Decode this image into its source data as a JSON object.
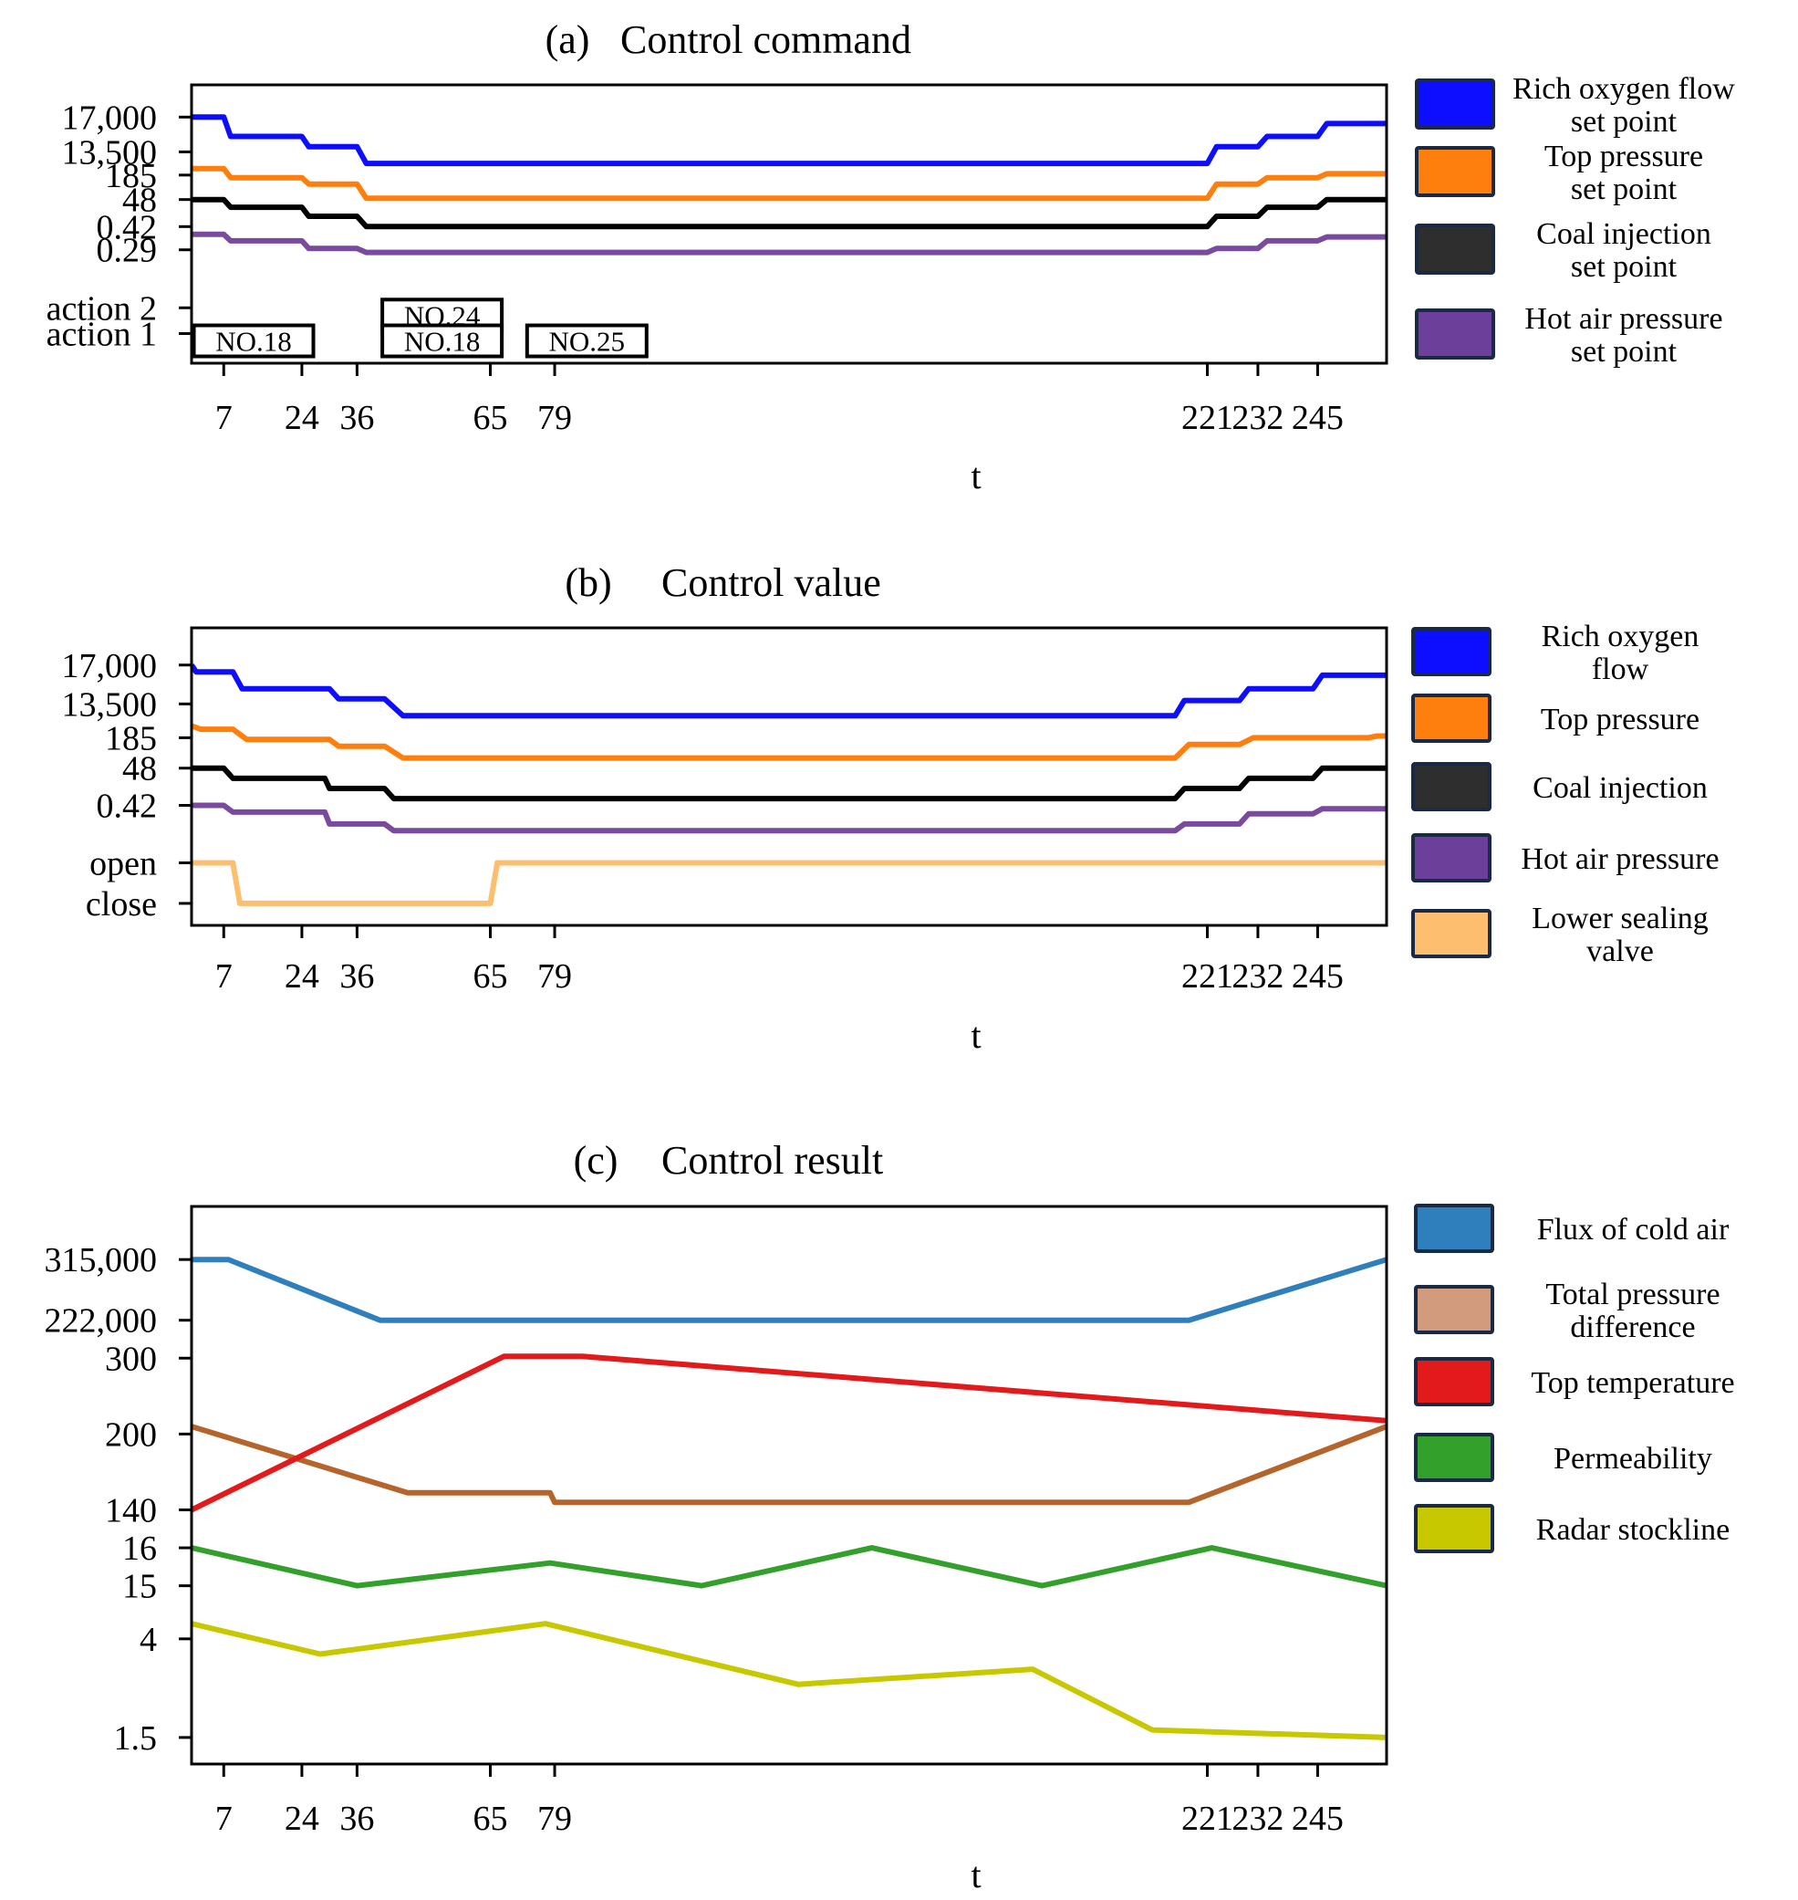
{
  "chart_data": [
    {
      "id": "a",
      "type": "line",
      "panel_label": "(a)",
      "title": "Control command",
      "xlabel": "t",
      "xlim": [
        0,
        260
      ],
      "x_ticks": [
        7,
        24,
        36,
        65,
        79,
        221,
        232,
        245
      ],
      "x_tick_labels": [
        "7",
        "24",
        "36",
        "65",
        "79",
        "221",
        "232",
        "245"
      ],
      "y_tick_labels": [
        {
          "label": "17,000",
          "level": 9.55
        },
        {
          "label": "13,500",
          "level": 8.2
        },
        {
          "label": "185",
          "level": 7.3
        },
        {
          "label": "48",
          "level": 6.35
        },
        {
          "label": "0.42",
          "level": 5.3
        },
        {
          "label": "0.29",
          "level": 4.4
        },
        {
          "label": "action 2",
          "level": 2.15
        },
        {
          "label": "action 1",
          "level": 1.15
        }
      ],
      "ylim": [
        0,
        10.8
      ],
      "series": [
        {
          "name": "Rich oxygen flow set point",
          "color": "#0d0dff",
          "x": [
            0,
            7,
            8.5,
            24,
            25.5,
            36,
            38,
            221,
            223,
            232,
            234,
            245,
            247,
            260
          ],
          "y": [
            9.55,
            9.55,
            8.8,
            8.8,
            8.4,
            8.4,
            7.75,
            7.75,
            8.4,
            8.4,
            8.8,
            8.8,
            9.3,
            9.3
          ]
        },
        {
          "name": "Top pressure set point",
          "color": "#ff7f0e",
          "x": [
            0,
            7,
            8.5,
            24,
            25.5,
            36,
            38,
            221,
            223,
            232,
            234,
            245,
            247,
            260
          ],
          "y": [
            7.55,
            7.55,
            7.2,
            7.2,
            6.95,
            6.95,
            6.4,
            6.4,
            6.95,
            6.95,
            7.2,
            7.2,
            7.35,
            7.35
          ]
        },
        {
          "name": "Coal injection set point",
          "color": "#000000",
          "x": [
            0,
            7,
            8.5,
            24,
            25.5,
            36,
            38,
            221,
            223,
            232,
            234,
            245,
            247,
            260
          ],
          "y": [
            6.35,
            6.35,
            6.05,
            6.05,
            5.7,
            5.7,
            5.3,
            5.3,
            5.7,
            5.7,
            6.05,
            6.05,
            6.35,
            6.35
          ]
        },
        {
          "name": "Hot air pressure set point",
          "color": "#7a4a9e",
          "x": [
            0,
            7,
            8.5,
            24,
            25.5,
            36,
            38,
            221,
            223,
            232,
            234,
            245,
            247,
            260
          ],
          "y": [
            5.0,
            5.0,
            4.75,
            4.75,
            4.45,
            4.45,
            4.3,
            4.3,
            4.45,
            4.45,
            4.75,
            4.75,
            4.9,
            4.9
          ]
        }
      ],
      "annotations": [
        {
          "text": "NO.18",
          "x0": 0.5,
          "x1": 26.5,
          "row": "action 1"
        },
        {
          "text": "NO.24",
          "x0": 41.5,
          "x1": 67.5,
          "row": "action 2"
        },
        {
          "text": "NO.18",
          "x0": 41.5,
          "x1": 67.5,
          "row": "action 1"
        },
        {
          "text": "NO.25",
          "x0": 73,
          "x1": 99,
          "row": "action 1"
        }
      ],
      "legend": {
        "placement": "right",
        "entries": [
          {
            "lines": [
              "Rich oxygen flow",
              "set point"
            ],
            "color": "#0d0dff"
          },
          {
            "lines": [
              "Top pressure",
              "set point"
            ],
            "color": "#ff7f0e"
          },
          {
            "lines": [
              "Coal injection",
              "set point"
            ],
            "color": "#2e2e2e"
          },
          {
            "lines": [
              "Hot air pressure",
              "set point"
            ],
            "color": "#6b3f9a"
          }
        ]
      }
    },
    {
      "id": "b",
      "type": "line",
      "panel_label": "(b)",
      "title": "Control value",
      "xlabel": "t",
      "xlim": [
        0,
        260
      ],
      "x_ticks": [
        7,
        24,
        36,
        65,
        79,
        221,
        232,
        245
      ],
      "x_tick_labels": [
        "7",
        "24",
        "36",
        "65",
        "79",
        "221",
        "232",
        "245"
      ],
      "y_tick_labels": [
        {
          "label": "17,000",
          "level": 9.2
        },
        {
          "label": "13,500",
          "level": 8.05
        },
        {
          "label": "185",
          "level": 7.05
        },
        {
          "label": "48",
          "level": 6.15
        },
        {
          "label": "0.42",
          "level": 5.05
        },
        {
          "label": "open",
          "level": 3.35
        },
        {
          "label": "close",
          "level": 2.15
        }
      ],
      "ylim": [
        1.5,
        10.3
      ],
      "series": [
        {
          "name": "Rich oxygen flow",
          "color": "#0d0dff",
          "x": [
            0,
            1,
            9,
            11,
            30,
            32,
            42,
            46,
            214,
            216,
            228,
            230,
            244,
            246,
            256,
            258,
            260
          ],
          "y": [
            9.2,
            9.0,
            9.0,
            8.5,
            8.5,
            8.2,
            8.2,
            7.7,
            7.7,
            8.15,
            8.15,
            8.5,
            8.5,
            8.9,
            8.9,
            8.9,
            8.9
          ]
        },
        {
          "name": "Top pressure",
          "color": "#ff7f0e",
          "x": [
            0,
            2,
            9,
            12,
            30,
            32,
            42,
            46,
            214,
            217,
            228,
            231,
            244,
            246,
            256,
            258,
            260
          ],
          "y": [
            7.4,
            7.3,
            7.3,
            7.0,
            7.0,
            6.8,
            6.8,
            6.45,
            6.45,
            6.85,
            6.85,
            7.05,
            7.05,
            7.05,
            7.05,
            7.1,
            7.1
          ]
        },
        {
          "name": "Coal injection",
          "color": "#000000",
          "x": [
            0,
            7,
            9,
            29,
            30,
            42,
            44,
            214,
            216,
            228,
            230,
            244,
            246,
            260
          ],
          "y": [
            6.15,
            6.15,
            5.85,
            5.85,
            5.55,
            5.55,
            5.25,
            5.25,
            5.55,
            5.55,
            5.85,
            5.85,
            6.15,
            6.15
          ]
        },
        {
          "name": "Hot air pressure",
          "color": "#7a4a9e",
          "x": [
            0,
            7,
            9,
            29,
            30,
            42,
            44,
            214,
            216,
            228,
            230,
            244,
            246,
            260
          ],
          "y": [
            5.05,
            5.05,
            4.85,
            4.85,
            4.5,
            4.5,
            4.3,
            4.3,
            4.5,
            4.5,
            4.8,
            4.8,
            4.95,
            4.95
          ]
        },
        {
          "name": "Lower sealing valve",
          "color": "#fdbf6f",
          "x": [
            0,
            9,
            10.5,
            65,
            66.5,
            260
          ],
          "y": [
            3.35,
            3.35,
            2.15,
            2.15,
            3.35,
            3.35
          ]
        }
      ],
      "legend": {
        "placement": "right",
        "entries": [
          {
            "lines": [
              "Rich oxygen",
              "flow"
            ],
            "color": "#0d0dff"
          },
          {
            "lines": [
              "Top pressure"
            ],
            "color": "#ff7f0e"
          },
          {
            "lines": [
              "Coal injection"
            ],
            "color": "#2e2e2e"
          },
          {
            "lines": [
              "Hot air pressure"
            ],
            "color": "#6b3f9a"
          },
          {
            "lines": [
              "Lower sealing",
              "valve"
            ],
            "color": "#fdbf6f"
          }
        ]
      }
    },
    {
      "id": "c",
      "type": "line",
      "panel_label": "(c)",
      "title": "Control result",
      "xlabel": "t",
      "xlim": [
        0,
        260
      ],
      "x_ticks": [
        7,
        24,
        36,
        65,
        79,
        221,
        232,
        245
      ],
      "x_tick_labels": [
        "7",
        "24",
        "36",
        "65",
        "79",
        "221",
        "232",
        "245"
      ],
      "y_tick_labels": [
        {
          "label": "315,000",
          "level": 13.3
        },
        {
          "label": "222,000",
          "level": 11.7
        },
        {
          "label": "300",
          "level": 10.7
        },
        {
          "label": "200",
          "level": 8.7
        },
        {
          "label": "140",
          "level": 6.7
        },
        {
          "label": "16",
          "level": 5.7
        },
        {
          "label": "15",
          "level": 4.7
        },
        {
          "label": "4",
          "level": 3.3
        },
        {
          "label": "1.5",
          "level": 0.7
        }
      ],
      "ylim": [
        0,
        14.7
      ],
      "series": [
        {
          "name": "Flux of cold air",
          "color": "#2f7fbc",
          "x": [
            0,
            8,
            41,
            217,
            260
          ],
          "y": [
            13.3,
            13.3,
            11.7,
            11.7,
            13.3
          ]
        },
        {
          "name": "Total pressure difference",
          "color": "#b5642c",
          "x": [
            0,
            47,
            78,
            79,
            217,
            260
          ],
          "y": [
            8.9,
            7.15,
            7.15,
            6.9,
            6.9,
            8.9
          ]
        },
        {
          "name": "Top temperature",
          "color": "#e31a1c",
          "x": [
            0,
            68,
            85,
            260
          ],
          "y": [
            6.7,
            10.75,
            10.75,
            9.05
          ]
        },
        {
          "name": "Permeability",
          "color": "#33a02c",
          "x": [
            0,
            36,
            78,
            111,
            148,
            185,
            222,
            260
          ],
          "y": [
            5.7,
            4.7,
            5.3,
            4.7,
            5.7,
            4.7,
            5.7,
            4.7
          ]
        },
        {
          "name": "Radar stockline",
          "color": "#c8c800",
          "x": [
            0,
            28,
            77,
            132,
            183,
            209,
            260
          ],
          "y": [
            3.7,
            2.9,
            3.7,
            2.1,
            2.5,
            0.9,
            0.7
          ]
        }
      ],
      "legend": {
        "placement": "right",
        "entries": [
          {
            "lines": [
              "Flux of cold air"
            ],
            "color": "#2f7fbc"
          },
          {
            "lines": [
              "Total pressure",
              "difference"
            ],
            "color": "#d39b7e"
          },
          {
            "lines": [
              "Top temperature"
            ],
            "color": "#e31a1c"
          },
          {
            "lines": [
              "Permeability"
            ],
            "color": "#33a02c"
          },
          {
            "lines": [
              "Radar stockline"
            ],
            "color": "#c8c800"
          }
        ]
      }
    }
  ]
}
